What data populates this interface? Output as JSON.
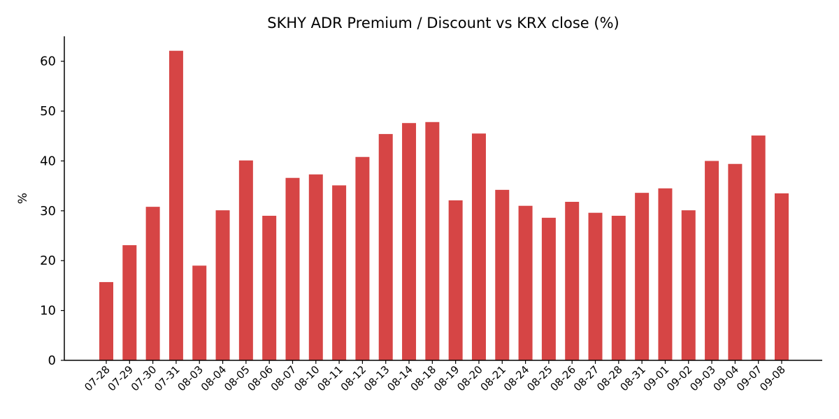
{
  "chart_data": {
    "type": "bar",
    "title": "SKHY ADR Premium / Discount vs KRX close (%)",
    "xlabel": "",
    "ylabel": "%",
    "ylim": [
      0,
      65
    ],
    "yticks": [
      0,
      10,
      20,
      30,
      40,
      50,
      60
    ],
    "grid": false,
    "bar_color": "#d64545",
    "categories": [
      "07-28",
      "07-29",
      "07-30",
      "07-31",
      "08-03",
      "08-04",
      "08-05",
      "08-06",
      "08-07",
      "08-10",
      "08-11",
      "08-12",
      "08-13",
      "08-14",
      "08-18",
      "08-19",
      "08-20",
      "08-21",
      "08-24",
      "08-25",
      "08-26",
      "08-27",
      "08-28",
      "08-31",
      "09-01",
      "09-02",
      "09-03",
      "09-04",
      "09-07",
      "09-08"
    ],
    "values": [
      15.7,
      23.1,
      30.8,
      62.1,
      19.0,
      30.1,
      40.1,
      29.0,
      36.6,
      37.3,
      35.1,
      40.8,
      45.4,
      47.6,
      47.8,
      32.1,
      45.5,
      34.2,
      31.0,
      28.6,
      31.8,
      29.6,
      29.0,
      33.6,
      34.5,
      30.1,
      40.0,
      39.4,
      45.1,
      33.5
    ]
  }
}
